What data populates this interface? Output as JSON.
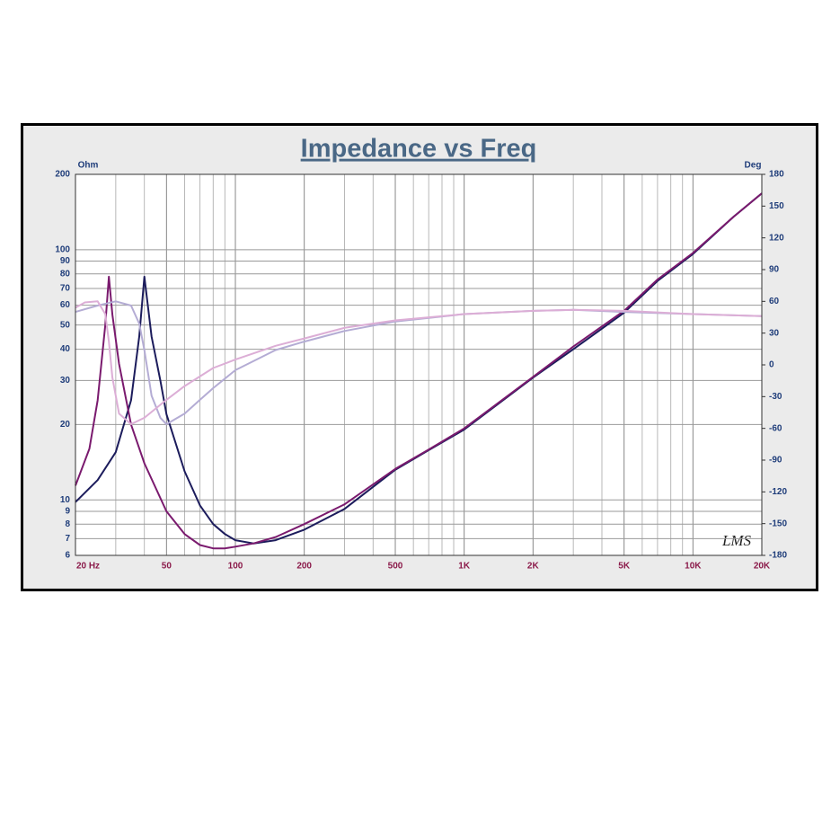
{
  "chart_data": {
    "type": "line",
    "title": "Impedance vs Freq",
    "y_label": "Ohm",
    "y2_label": "Deg",
    "annotation": "LMS",
    "xscale": "log",
    "yscale": "log",
    "grid": true,
    "xlim": [
      20,
      20000
    ],
    "ylim": [
      6,
      200
    ],
    "y2lim": [
      -180,
      180
    ],
    "xticks": [
      {
        "value": 20,
        "label": "20 Hz"
      },
      50,
      100,
      200,
      500,
      {
        "value": 1000,
        "label": "1K"
      },
      {
        "value": 2000,
        "label": "2K"
      },
      {
        "value": 5000,
        "label": "5K"
      },
      {
        "value": 10000,
        "label": "10K"
      },
      {
        "value": 20000,
        "label": "20K"
      }
    ],
    "xgrid_minor": [
      30,
      40,
      60,
      70,
      80,
      90,
      300,
      400,
      600,
      700,
      800,
      900,
      3000,
      4000,
      6000,
      7000,
      8000,
      9000
    ],
    "yticks": [
      6,
      7,
      8,
      9,
      10,
      20,
      30,
      40,
      50,
      60,
      70,
      80,
      90,
      100,
      200
    ],
    "y2ticks": [
      -180,
      -150,
      -120,
      -90,
      -60,
      -30,
      0,
      30,
      60,
      90,
      120,
      150,
      180
    ],
    "series": [
      {
        "color": "#1c1c5c",
        "x": [
          20,
          25,
          30,
          35,
          38,
          40,
          43,
          47,
          50,
          60,
          70,
          80,
          90,
          100,
          120,
          150,
          200,
          300,
          500,
          700,
          1000,
          2000,
          3000,
          5000,
          7000,
          10000,
          15000,
          20000
        ],
        "values": [
          9.8,
          12,
          15.5,
          25,
          45,
          78,
          45,
          30,
          22,
          13,
          9.5,
          8,
          7.3,
          6.9,
          6.7,
          6.9,
          7.6,
          9.2,
          13.2,
          15.8,
          19.1,
          30.8,
          40,
          56,
          75,
          96,
          135,
          168
        ]
      },
      {
        "color": "#7a1a6e",
        "x": [
          20,
          23,
          25,
          27,
          28,
          29,
          31,
          35,
          40,
          50,
          60,
          70,
          80,
          90,
          100,
          120,
          150,
          200,
          300,
          500,
          700,
          1000,
          2000,
          3000,
          5000,
          7000,
          10000,
          15000,
          20000
        ],
        "values": [
          11.4,
          16,
          25,
          50,
          78,
          55,
          35,
          20,
          14,
          9,
          7.3,
          6.6,
          6.4,
          6.4,
          6.5,
          6.7,
          7.1,
          8,
          9.6,
          13.3,
          15.9,
          19.3,
          31,
          41,
          57,
          76,
          97,
          135,
          168
        ]
      },
      {
        "color": "#b4acd4",
        "axis": "y2",
        "x": [
          20,
          25,
          30,
          35,
          38,
          40,
          43,
          47,
          50,
          60,
          70,
          80,
          100,
          150,
          200,
          300,
          500,
          1000,
          2000,
          3000,
          5000,
          10000,
          20000
        ],
        "values": [
          50,
          56,
          60,
          56,
          39,
          14,
          -29,
          -50,
          -56,
          -46,
          -33,
          -22,
          -5,
          14,
          22,
          32,
          41,
          48,
          51,
          52,
          50,
          48,
          46
        ]
      },
      {
        "color": "#dcaed6",
        "axis": "y2",
        "x": [
          20,
          22,
          25,
          27,
          28,
          29,
          31,
          35,
          40,
          50,
          60,
          80,
          100,
          150,
          200,
          300,
          500,
          1000,
          2000,
          3000,
          5000,
          10000,
          20000
        ],
        "values": [
          54,
          59,
          60,
          48,
          22,
          -12,
          -46,
          -56,
          -50,
          -33,
          -20,
          -3,
          5,
          18,
          25,
          35,
          42,
          48,
          51,
          52,
          51,
          48,
          46
        ]
      }
    ]
  }
}
